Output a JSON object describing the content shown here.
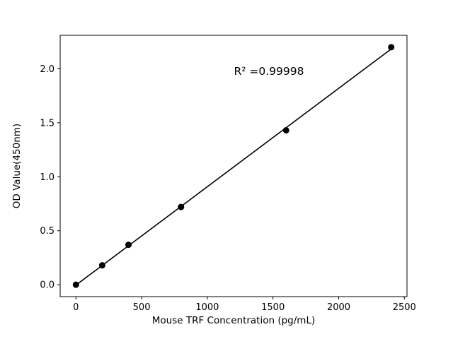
{
  "figure": {
    "background": "#ffffff",
    "foreground": "#000000"
  },
  "chart_data": {
    "type": "scatter",
    "x": [
      0,
      200,
      400,
      800,
      1600,
      2400
    ],
    "y": [
      0.0,
      0.18,
      0.37,
      0.72,
      1.43,
      2.2
    ],
    "title": "",
    "xlabel": "Mouse TRF Concentration (pg/mL)",
    "ylabel": "OD Value(450nm)",
    "xlim": [
      -120,
      2520
    ],
    "ylim": [
      -0.11,
      2.31
    ],
    "xticks": [
      0,
      500,
      1000,
      1500,
      2000,
      2500
    ],
    "yticks": [
      0.0,
      0.5,
      1.0,
      1.5,
      2.0
    ],
    "grid": false,
    "legend": null,
    "annotation": "R² =0.99998",
    "marker_color": "#000000",
    "line_color": "#000000",
    "fit": "linear"
  }
}
